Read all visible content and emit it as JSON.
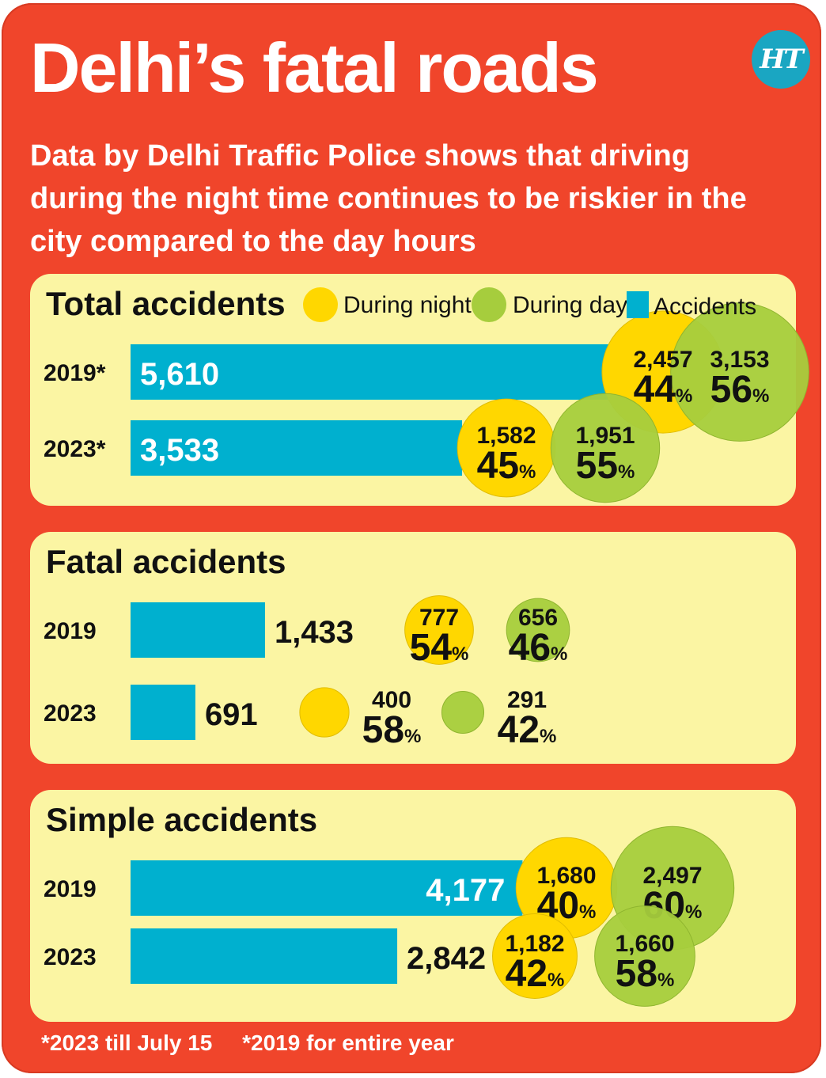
{
  "header": {
    "title": "Delhi’s fatal roads",
    "logo_text": "HT",
    "subtitle": "Data by Delhi Traffic Police shows that driving during the night time continues to be riskier in the city compared to the day hours"
  },
  "legend": {
    "night_label": "During night",
    "day_label": "During day",
    "accidents_label": "Accidents"
  },
  "colors": {
    "background": "#f0452b",
    "panel": "#fbf5a3",
    "bar": "#00b0cf",
    "night": "#ffd700",
    "day": "#a6cd3d"
  },
  "chart_data": [
    {
      "type": "bar",
      "title": "Total accidents",
      "categories": [
        "2019*",
        "2023*"
      ],
      "series": [
        {
          "name": "Accidents",
          "values": [
            5610,
            3533
          ],
          "labels": [
            "5,610",
            "3,533"
          ]
        },
        {
          "name": "During night",
          "values": [
            2457,
            1582
          ],
          "labels": [
            "2,457",
            "1,582"
          ],
          "percent": [
            "44",
            "45"
          ]
        },
        {
          "name": "During day",
          "values": [
            3153,
            1951
          ],
          "labels": [
            "3,153",
            "1,951"
          ],
          "percent": [
            "56",
            "55"
          ]
        }
      ]
    },
    {
      "type": "bar",
      "title": "Fatal accidents",
      "categories": [
        "2019",
        "2023"
      ],
      "series": [
        {
          "name": "Accidents",
          "values": [
            1433,
            691
          ],
          "labels": [
            "1,433",
            "691"
          ]
        },
        {
          "name": "During night",
          "values": [
            777,
            400
          ],
          "labels": [
            "777",
            "400"
          ],
          "percent": [
            "54",
            "58"
          ]
        },
        {
          "name": "During day",
          "values": [
            656,
            291
          ],
          "labels": [
            "656",
            "291"
          ],
          "percent": [
            "46",
            "42"
          ]
        }
      ]
    },
    {
      "type": "bar",
      "title": "Simple accidents",
      "categories": [
        "2019",
        "2023"
      ],
      "series": [
        {
          "name": "Accidents",
          "values": [
            4177,
            2842
          ],
          "labels": [
            "4,177",
            "2,842"
          ]
        },
        {
          "name": "During night",
          "values": [
            1680,
            1182
          ],
          "labels": [
            "1,680",
            "1,182"
          ],
          "percent": [
            "40",
            "42"
          ]
        },
        {
          "name": "During day",
          "values": [
            2497,
            1660
          ],
          "labels": [
            "2,497",
            "1,660"
          ],
          "percent": [
            "60",
            "58"
          ]
        }
      ]
    }
  ],
  "percent_sign": "%",
  "footnotes": [
    "*2023 till July 15",
    "*2019 for entire year"
  ]
}
